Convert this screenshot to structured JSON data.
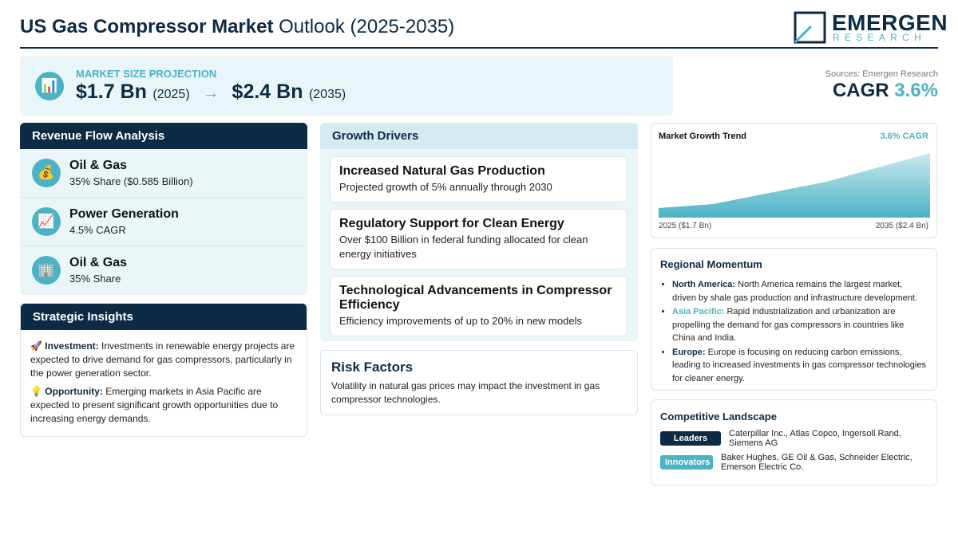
{
  "header": {
    "title_bold": "US Gas Compressor Market",
    "title_rest": "Outlook (2025-2035)",
    "logo_main": "EMERGEN",
    "logo_sub": "RESEARCH"
  },
  "projection": {
    "icon": "📊",
    "label": "MARKET SIZE PROJECTION",
    "start_value": "$1.7 Bn",
    "start_year": "(2025)",
    "arrow": "→",
    "end_value": "$2.4 Bn",
    "end_year": "(2035)"
  },
  "sources": "Sources: Emergen Research",
  "cagr": {
    "label": "CAGR",
    "value": "3.6%"
  },
  "revenue_flow": {
    "title": "Revenue Flow Analysis",
    "items": [
      {
        "icon": "💰",
        "name": "Oil & Gas",
        "detail": "35% Share ($0.585 Billion)"
      },
      {
        "icon": "📈",
        "name": "Power Generation",
        "detail": "4.5% CAGR"
      },
      {
        "icon": "🏢",
        "name": "Oil & Gas",
        "detail": "35% Share"
      }
    ]
  },
  "strategic_insights": {
    "title": "Strategic Insights",
    "items": [
      {
        "icon": "🚀",
        "label": "Investment:",
        "text": "Investments in renewable energy projects are expected to drive demand for gas compressors, particularly in the power generation sector."
      },
      {
        "icon": "💡",
        "label": "Opportunity:",
        "text": "Emerging markets in Asia Pacific are expected to present significant growth opportunities due to increasing energy demands."
      }
    ]
  },
  "growth_drivers": {
    "title": "Growth Drivers",
    "items": [
      {
        "title": "Increased Natural Gas Production",
        "text": "Projected growth of 5% annually through 2030"
      },
      {
        "title": "Regulatory Support for Clean Energy",
        "text": "Over $100 Billion in federal funding allocated for clean energy initiatives"
      },
      {
        "title": "Technological Advancements in Compressor Efficiency",
        "text": "Efficiency improvements of up to 20% in new models"
      }
    ]
  },
  "risk_factors": {
    "title": "Risk Factors",
    "text": "Volatility in natural gas prices may impact the investment in gas compressor technologies."
  },
  "trend": {
    "title": "Market Growth Trend",
    "cagr": "3.6% CAGR",
    "start_label": "2025 ($1.7 Bn)",
    "end_label": "2035 ($2.4 Bn)"
  },
  "regional": {
    "title": "Regional Momentum",
    "items": [
      {
        "region": "North America:",
        "text": "North America remains the largest market, driven by shale gas production and infrastructure development."
      },
      {
        "region": "Asia Pacific:",
        "text": "Rapid industrialization and urbanization are propelling the demand for gas compressors in countries like China and India."
      },
      {
        "region": "Europe:",
        "text": "Europe is focusing on reducing carbon emissions, leading to increased investments in gas compressor technologies for cleaner energy."
      }
    ]
  },
  "competitive": {
    "title": "Competitive Landscape",
    "groups": [
      {
        "label": "Leaders",
        "text": "Caterpillar Inc., Atlas Copco, Ingersoll Rand, Siemens AG"
      },
      {
        "label": "Innovators",
        "text": "Baker Hughes, GE Oil & Gas, Schneider Electric, Emerson Electric Co."
      }
    ]
  }
}
